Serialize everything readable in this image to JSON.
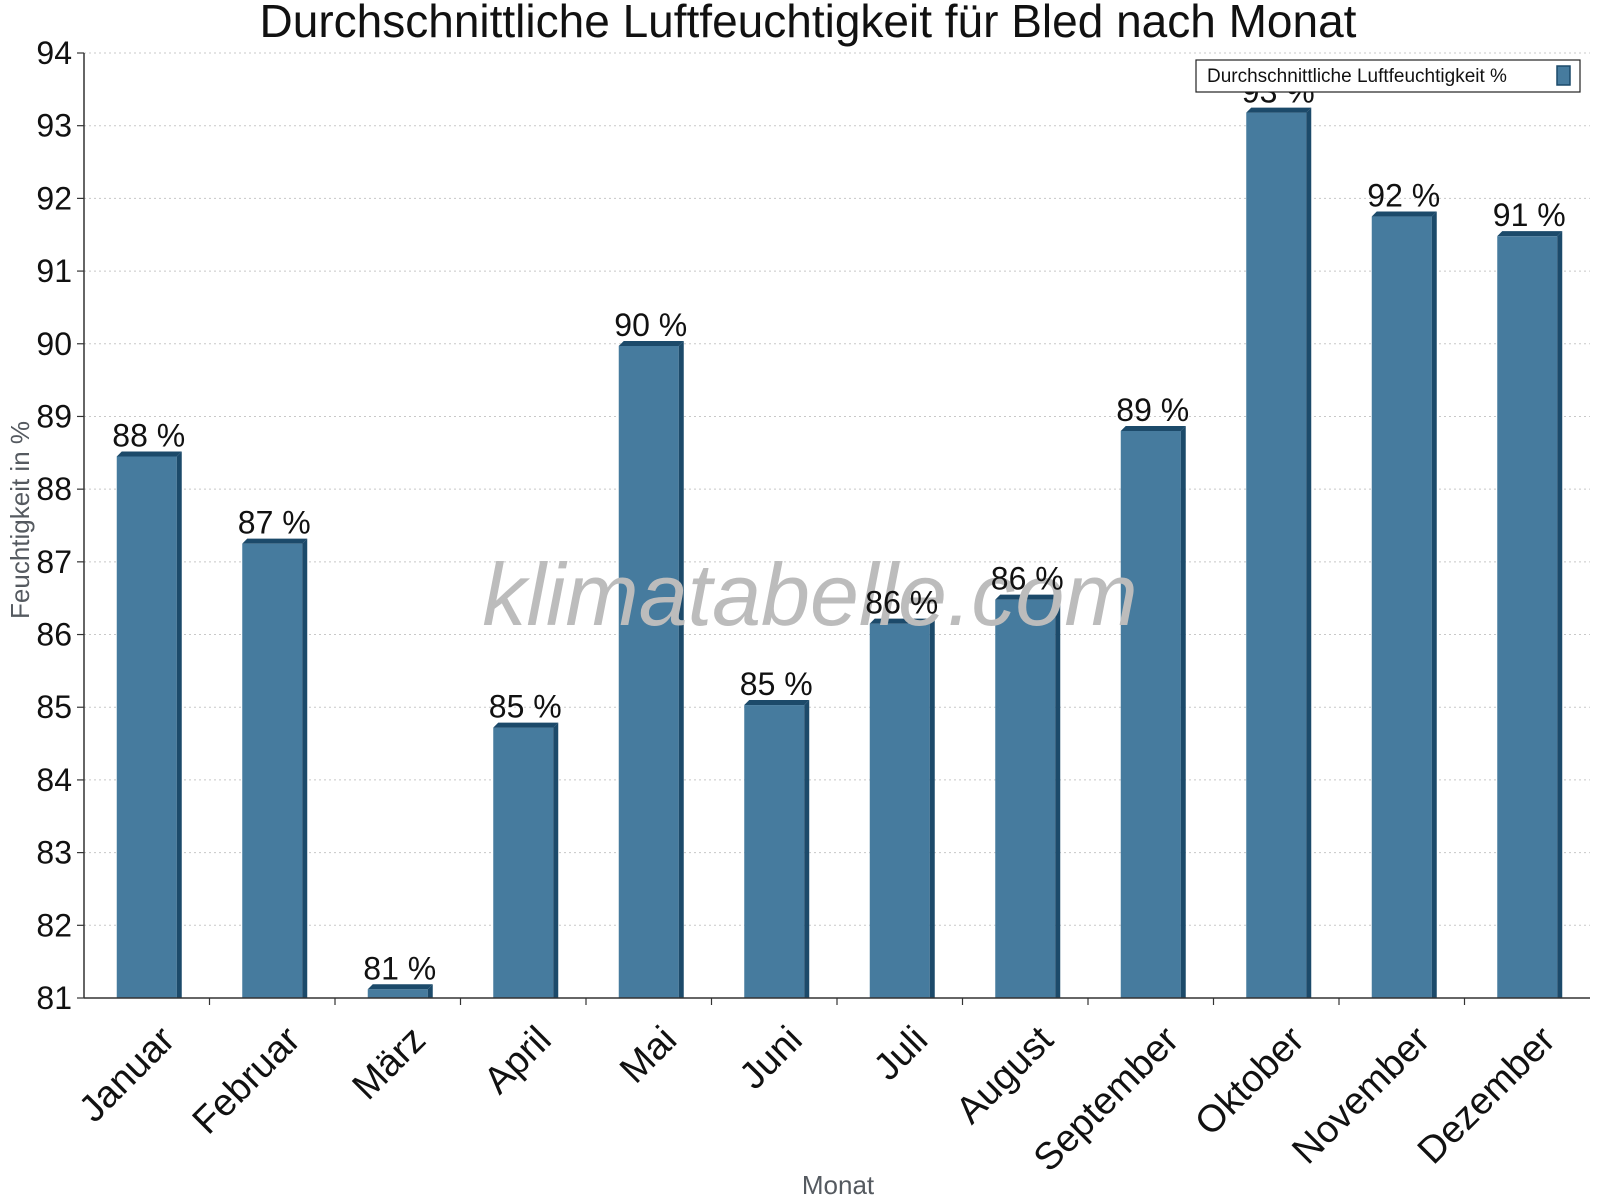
{
  "chart_data": {
    "type": "bar",
    "title": "Durchschnittliche Luftfeuchtigkeit für Bled nach Monat",
    "xlabel": "Monat",
    "ylabel": "Feuchtigkeit in %",
    "categories": [
      "Januar",
      "Februar",
      "März",
      "April",
      "Mai",
      "Juni",
      "Juli",
      "August",
      "September",
      "Oktober",
      "November",
      "Dezember"
    ],
    "series": [
      {
        "name": "Durchschnittliche Luftfeuchtigkeit %",
        "values": [
          88.45,
          87.25,
          81.12,
          84.72,
          89.97,
          85.03,
          86.15,
          86.48,
          88.8,
          93.18,
          91.75,
          91.48
        ],
        "labels": [
          "88 %",
          "87 %",
          "81 %",
          "85 %",
          "90 %",
          "85 %",
          "86 %",
          "86 %",
          "89 %",
          "93 %",
          "92 %",
          "91 %"
        ]
      }
    ],
    "ylim": [
      81,
      94
    ],
    "yticks": [
      81,
      82,
      83,
      84,
      85,
      86,
      87,
      88,
      89,
      90,
      91,
      92,
      93,
      94
    ],
    "grid": true,
    "legend": "top-right",
    "colors": {
      "bar": "#467b9e",
      "bar_dark": "#1c4a6a"
    }
  },
  "watermark": "klimatabelle.com"
}
